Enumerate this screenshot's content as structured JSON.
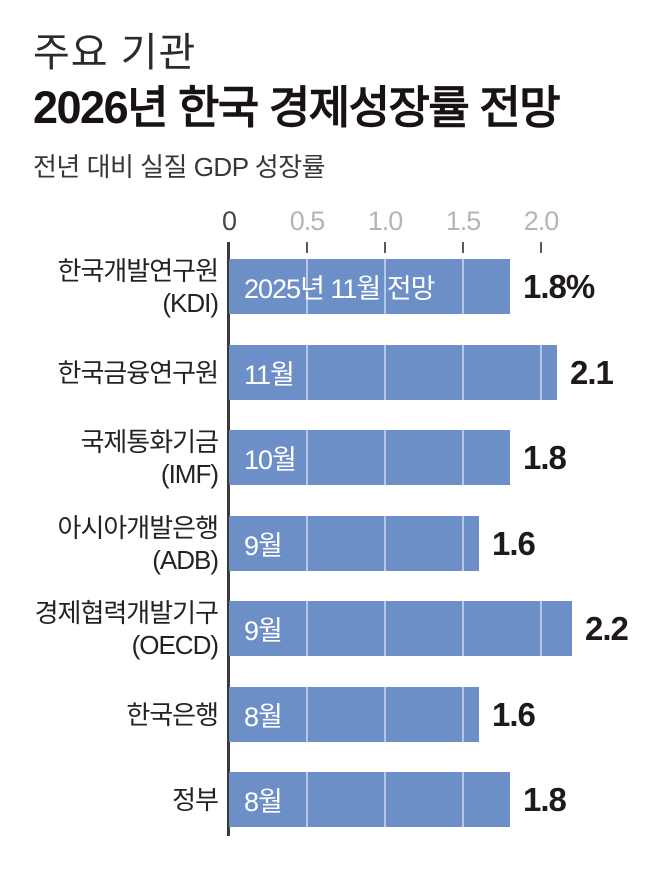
{
  "header": {
    "kicker": "주요 기관",
    "title": "2026년 한국 경제성장률 전망",
    "subtitle": "전년 대비 실질 GDP 성장률"
  },
  "chart_data": {
    "type": "bar",
    "orientation": "horizontal",
    "title": "주요 기관 2026년 한국 경제성장률 전망",
    "xlabel": "전년 대비 실질 GDP 성장률",
    "ylabel": "",
    "xlim": [
      0,
      2.2
    ],
    "ticks": [
      0,
      0.5,
      1.0,
      1.5,
      2.0
    ],
    "grid": "white vertical gridlines visible only across bars",
    "legend": "none",
    "categories": [
      "한국개발연구원 (KDI)",
      "한국금융연구원",
      "국제통화기금 (IMF)",
      "아시아개발은행 (ADB)",
      "경제협력개발기구 (OECD)",
      "한국은행",
      "정부"
    ],
    "values": [
      1.8,
      2.1,
      1.8,
      1.6,
      2.2,
      1.6,
      1.8
    ],
    "rows": [
      {
        "institution": "한국개발연구원",
        "abbr": "(KDI)",
        "bar_label": "2025년 11월 전망",
        "value": 1.8,
        "value_label": "1.8%"
      },
      {
        "institution": "한국금융연구원",
        "abbr": "",
        "bar_label": "11월",
        "value": 2.1,
        "value_label": "2.1"
      },
      {
        "institution": "국제통화기금",
        "abbr": "(IMF)",
        "bar_label": "10월",
        "value": 1.8,
        "value_label": "1.8"
      },
      {
        "institution": "아시아개발은행",
        "abbr": "(ADB)",
        "bar_label": "9월",
        "value": 1.6,
        "value_label": "1.6"
      },
      {
        "institution": "경제협력개발기구",
        "abbr": "(OECD)",
        "bar_label": "9월",
        "value": 2.2,
        "value_label": "2.2"
      },
      {
        "institution": "한국은행",
        "abbr": "",
        "bar_label": "8월",
        "value": 1.6,
        "value_label": "1.6"
      },
      {
        "institution": "정부",
        "abbr": "",
        "bar_label": "8월",
        "value": 1.8,
        "value_label": "1.8"
      }
    ],
    "colors": {
      "bar": "#6d8fc7",
      "gridline_on_bar": "rgba(255,255,255,0.5)",
      "axis_line": "#3c3a39",
      "tick_label": "#b5b5b5",
      "tick_label_zero": "#4a4644",
      "value_label": "#1f1a18",
      "bar_label_text": "#ffffff"
    }
  }
}
